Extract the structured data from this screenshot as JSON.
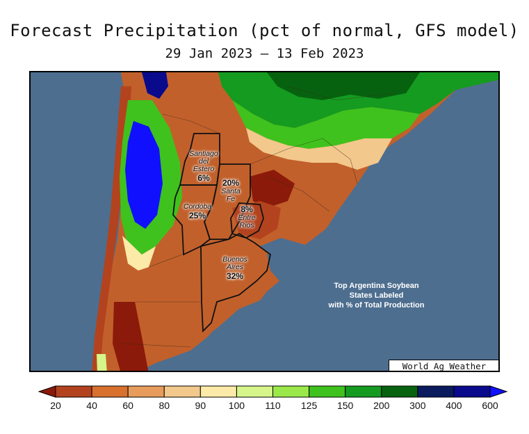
{
  "title": "Forecast Precipitation (pct of normal, GFS model)",
  "subtitle": "29 Jan 2023 – 13 Feb 2023",
  "states": [
    {
      "name": "Santiago del Estero",
      "lines": [
        "Santiago",
        "del",
        "Estero"
      ],
      "pct": "6%"
    },
    {
      "name": "Santa Fe",
      "lines": [
        "Santa",
        "Fe"
      ],
      "pct": "20%"
    },
    {
      "name": "Cordoba",
      "lines": [
        "Cordoba"
      ],
      "pct": "25%"
    },
    {
      "name": "Entre Rios",
      "lines": [
        "Entre",
        "Rios"
      ],
      "pct": "8%"
    },
    {
      "name": "Buenos Aires",
      "lines": [
        "Buenos",
        "Aires"
      ],
      "pct": "32%"
    }
  ],
  "annotation": {
    "line1": "Top Argentina Soybean",
    "line2": "States Labeled",
    "line3": "with % of Total Production"
  },
  "brand": "World Ag Weather",
  "legend": {
    "ticks": [
      "20",
      "40",
      "60",
      "80",
      "90",
      "100",
      "110",
      "125",
      "150",
      "200",
      "300",
      "400",
      "600"
    ],
    "colors": [
      "#8b1a0a",
      "#b3431e",
      "#d8702e",
      "#e79c5b",
      "#f2c88c",
      "#fbeaa8",
      "#d6f58a",
      "#9be84a",
      "#3fc21d",
      "#149b20",
      "#06620f",
      "#0a1b5e",
      "#0a0a8c",
      "#1010ff"
    ]
  }
}
